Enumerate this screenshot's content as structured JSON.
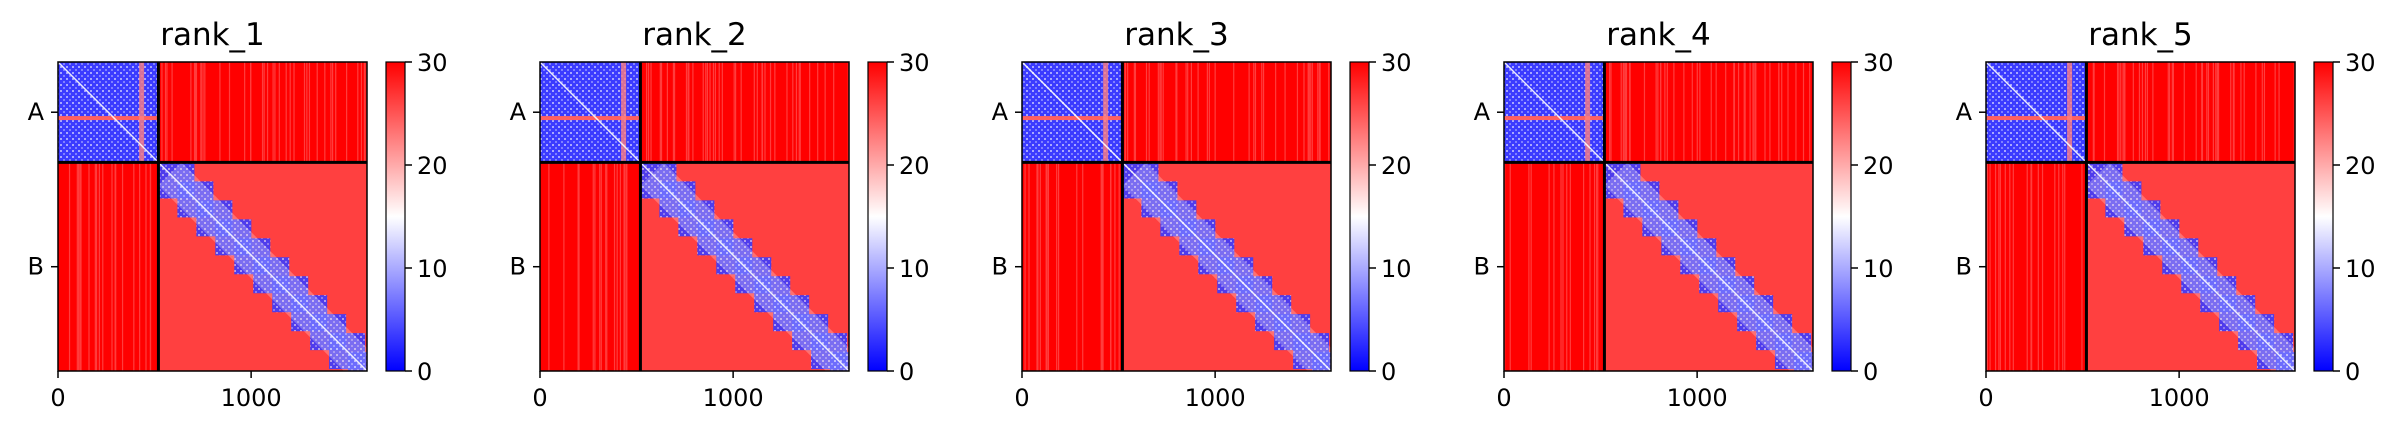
{
  "chart_data": {
    "type": "heatmap",
    "panels": [
      {
        "title": "rank_1"
      },
      {
        "title": "rank_2"
      },
      {
        "title": "rank_3"
      },
      {
        "title": "rank_4"
      },
      {
        "title": "rank_5"
      }
    ],
    "chains": [
      {
        "label": "A",
        "start": 0,
        "end": 520
      },
      {
        "label": "B",
        "start": 520,
        "end": 1600
      }
    ],
    "x_range": [
      0,
      1600
    ],
    "x_ticks": [
      0,
      1000
    ],
    "x_tick_labels": [
      "0",
      "1000"
    ],
    "colorbar": {
      "range": [
        0,
        30
      ],
      "ticks": [
        0,
        10,
        20,
        30
      ],
      "tick_labels": [
        "0",
        "10",
        "20",
        "30"
      ],
      "colormap": [
        "#0000ff",
        "#ffffff",
        "#ff0000"
      ]
    },
    "grid": false
  }
}
